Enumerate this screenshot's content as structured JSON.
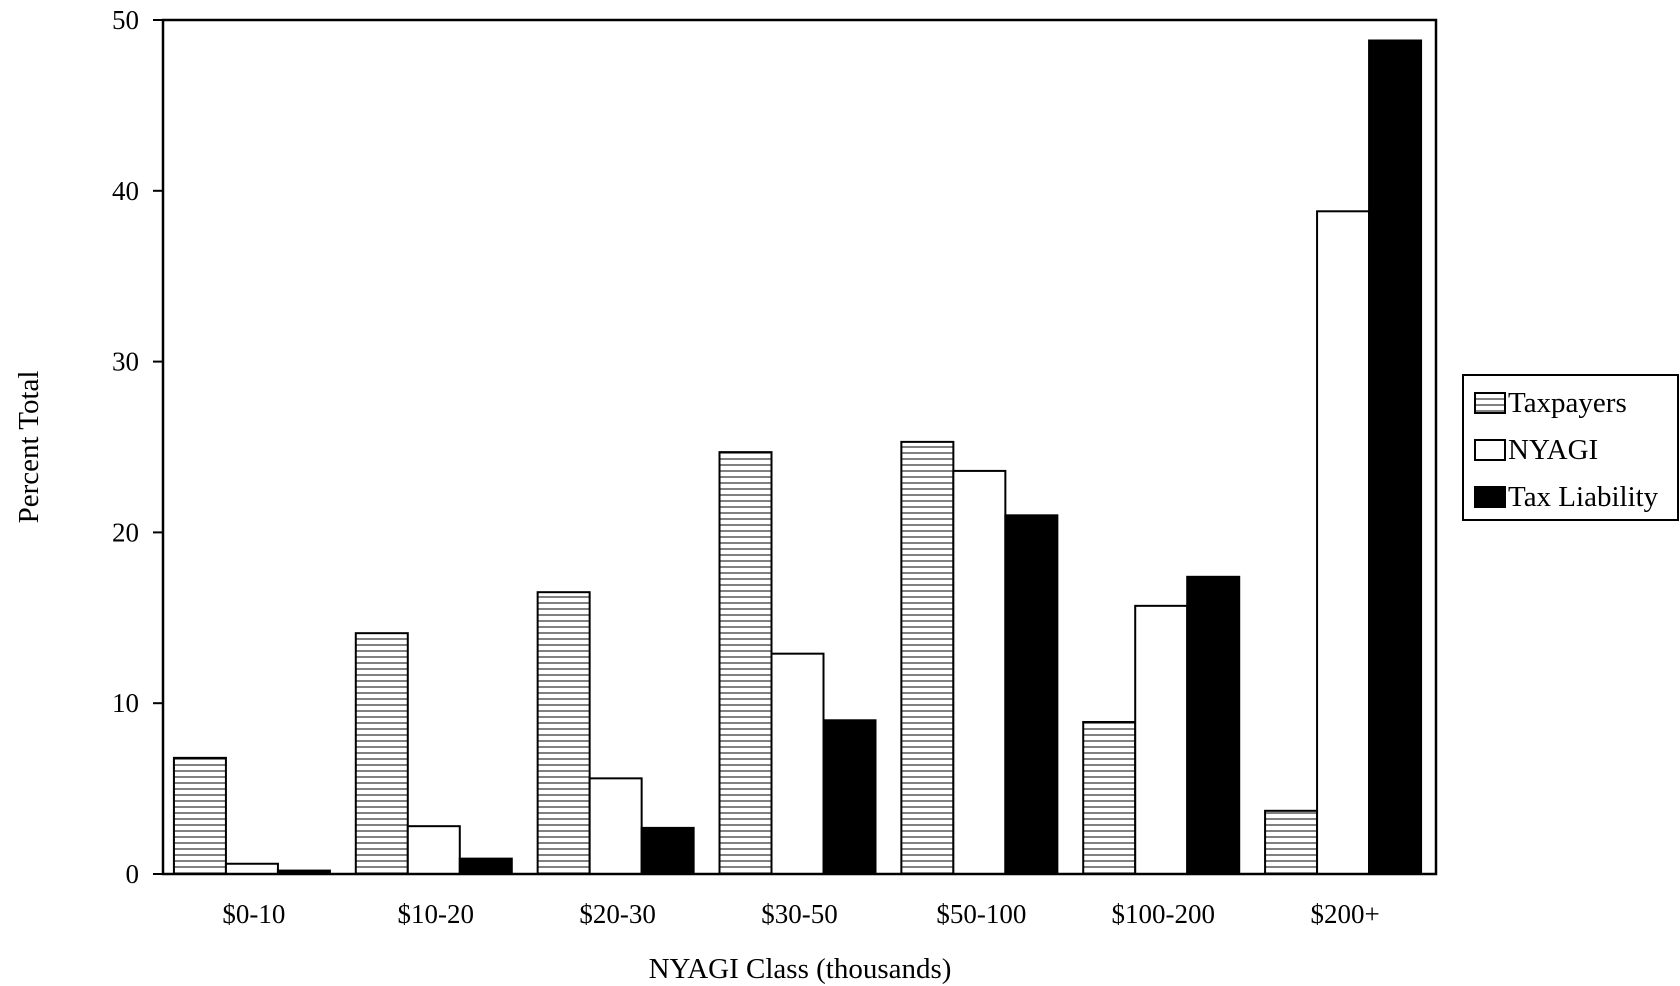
{
  "chart_data": {
    "type": "bar",
    "title": "",
    "xlabel": "NYAGI Class (thousands)",
    "ylabel": "Percent Total",
    "ylim": [
      0,
      50
    ],
    "yticks": [
      0,
      10,
      20,
      30,
      40,
      50
    ],
    "grid": false,
    "legend_position": "right",
    "categories": [
      "$0-10",
      "$10-20",
      "$20-30",
      "$30-50",
      "$50-100",
      "$100-200",
      "$200+"
    ],
    "series": [
      {
        "name": "Taxpayers",
        "fill": "hatched",
        "values": [
          6.8,
          14.1,
          16.5,
          24.7,
          25.3,
          8.9,
          3.7
        ]
      },
      {
        "name": "NYAGI",
        "fill": "white",
        "values": [
          0.6,
          2.8,
          5.6,
          12.9,
          23.6,
          15.7,
          38.8
        ]
      },
      {
        "name": "Tax Liability",
        "fill": "black",
        "values": [
          0.2,
          0.9,
          2.7,
          9.0,
          21.0,
          17.4,
          48.8
        ]
      }
    ],
    "colors": {
      "stroke": "#000000",
      "white_fill": "#ffffff",
      "black_fill": "#000000"
    }
  }
}
